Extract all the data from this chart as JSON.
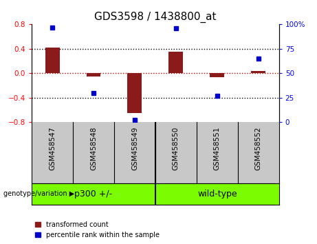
{
  "title": "GDS3598 / 1438800_at",
  "samples": [
    "GSM458547",
    "GSM458548",
    "GSM458549",
    "GSM458550",
    "GSM458551",
    "GSM458552"
  ],
  "bar_values": [
    0.42,
    -0.05,
    -0.65,
    0.35,
    -0.07,
    0.04
  ],
  "percentile_values": [
    97,
    30,
    2,
    96,
    27,
    65
  ],
  "ylim_left": [
    -0.8,
    0.8
  ],
  "ylim_right": [
    0,
    100
  ],
  "yticks_left": [
    -0.8,
    -0.4,
    0,
    0.4,
    0.8
  ],
  "yticks_right": [
    0,
    25,
    50,
    75,
    100
  ],
  "bar_color": "#8B1A1A",
  "dot_color": "#0000CC",
  "hline_zero_color": "#CC0000",
  "hline_dotted_color": "#000000",
  "group_divider": 2.5,
  "group_labels": [
    "p300 +/-",
    "wild-type"
  ],
  "group_centers": [
    1.0,
    4.0
  ],
  "group_label_prefix": "genotype/variation",
  "legend_bar_label": "transformed count",
  "legend_dot_label": "percentile rank within the sample",
  "tick_label_fontsize": 7.5,
  "title_fontsize": 11,
  "bar_width": 0.35,
  "sample_area_color": "#C8C8C8",
  "group_area_color": "#7CFC00",
  "ytick_fontsize": 7.5,
  "right_ytick_fontsize": 7.5
}
